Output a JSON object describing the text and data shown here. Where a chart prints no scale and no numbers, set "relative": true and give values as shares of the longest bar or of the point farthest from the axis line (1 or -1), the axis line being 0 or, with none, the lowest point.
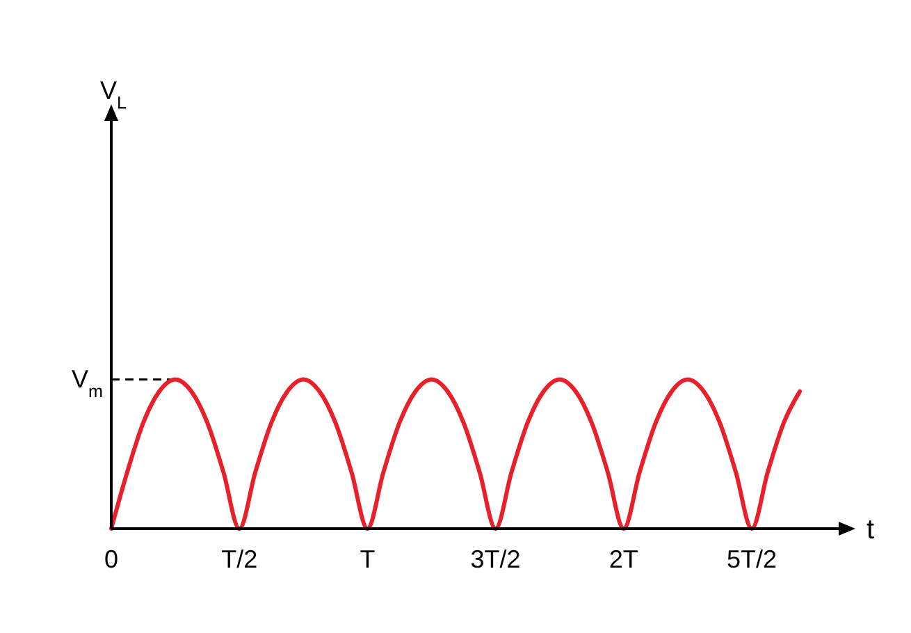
{
  "chart_data": {
    "type": "line",
    "xlabel": "t",
    "annotations": [
      "V$_{L}$"
    ],
    "relative": true,
    "categories": [
      "0",
      null,
      null,
      null,
      null,
      null,
      null,
      null,
      "T/2",
      null,
      null,
      null,
      null,
      null,
      null,
      null,
      "T",
      null,
      null,
      null,
      null,
      null,
      null,
      null,
      "3T/2",
      null,
      null,
      null,
      null,
      null,
      null,
      null,
      "2T",
      null,
      null,
      null,
      null,
      null,
      null,
      null,
      "5T/2",
      null,
      null,
      null
    ],
    "series": [
      {
        "color": "#e8202a",
        "values": [
          0,
          0.38,
          0.71,
          0.92,
          1,
          0.92,
          0.71,
          0.38,
          0,
          0.38,
          0.71,
          0.92,
          1,
          0.92,
          0.71,
          0.38,
          0,
          0.38,
          0.71,
          0.92,
          1,
          0.92,
          0.71,
          0.38,
          0,
          0.38,
          0.71,
          0.92,
          1,
          0.92,
          0.71,
          0.38,
          0,
          0.38,
          0.71,
          0.92,
          1,
          0.92,
          0.71,
          0.38,
          0,
          0.38,
          0.71,
          0.92
        ]
      }
    ],
    "ref_lines": [
      {
        "axis": "y",
        "value": 1,
        "label": "V$_{m}$",
        "line_style": "dashed",
        "color": "#000000"
      }
    ],
    "marker": "none",
    "line_style": "solid"
  }
}
